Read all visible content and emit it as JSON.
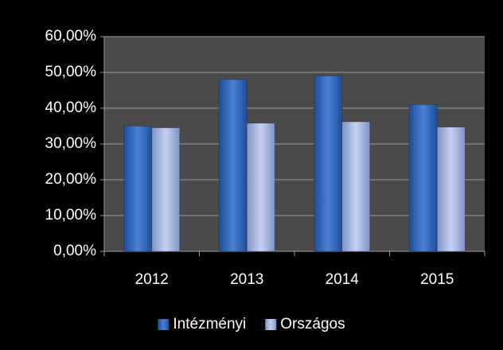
{
  "chart_data": {
    "type": "bar",
    "categories": [
      "2012",
      "2013",
      "2014",
      "2015"
    ],
    "series": [
      {
        "name": "Intézményi",
        "color": "#3a6fc0",
        "values": [
          35,
          48,
          49,
          41
        ]
      },
      {
        "name": "Országos",
        "color": "#a9b8e0",
        "values": [
          34.5,
          35.8,
          36.2,
          34.7
        ]
      }
    ],
    "ylim": [
      0,
      60
    ],
    "yticks": [
      {
        "value": 0,
        "label": "0,00%"
      },
      {
        "value": 10,
        "label": "10,00%"
      },
      {
        "value": 20,
        "label": "20,00%"
      },
      {
        "value": 30,
        "label": "30,00%"
      },
      {
        "value": 40,
        "label": "40,00%"
      },
      {
        "value": 50,
        "label": "50,00%"
      },
      {
        "value": 60,
        "label": "60,00%"
      }
    ],
    "grid": true,
    "legend": "bottom"
  }
}
